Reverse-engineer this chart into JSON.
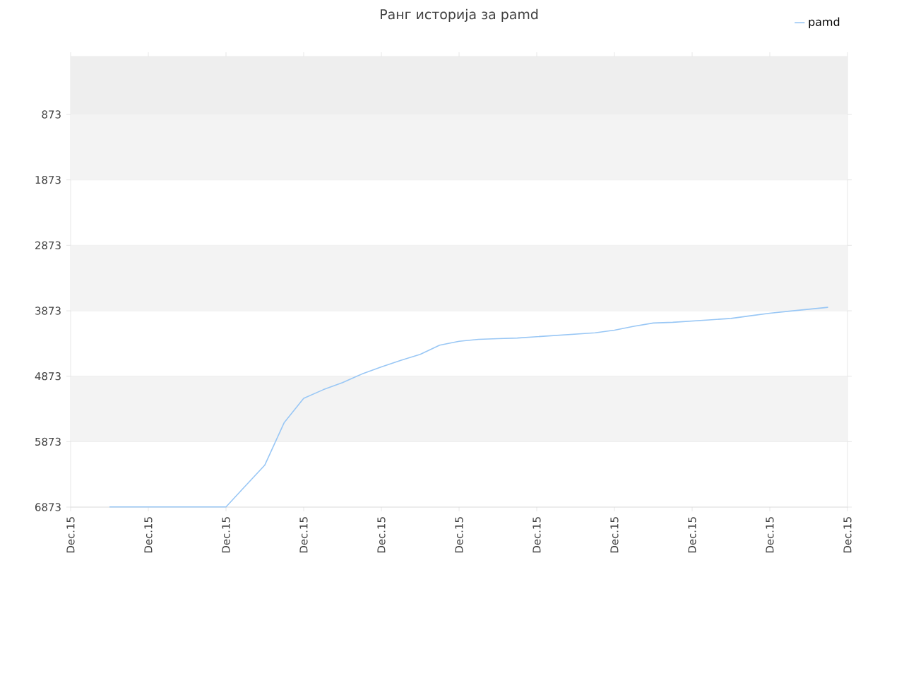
{
  "chart_data": {
    "type": "line",
    "title": "Ранг историја за pamd",
    "categories": [
      "Dec.15",
      null,
      null,
      null,
      "Dec.15",
      null,
      null,
      null,
      "Dec.15",
      null,
      null,
      null,
      "Dec.15",
      null,
      null,
      null,
      "Dec.15",
      null,
      null,
      null,
      "Dec.15",
      null,
      null,
      null,
      "Dec.15",
      null,
      null,
      null,
      "Dec.15",
      null,
      null,
      null,
      "Dec.15",
      null,
      null,
      null,
      "Dec.15",
      null,
      null,
      null,
      "Dec.15"
    ],
    "series": [
      {
        "name": "pamd",
        "color": "#99c7f5",
        "values": [
          null,
          null,
          6870,
          6870,
          6870,
          6870,
          6870,
          6870,
          6870,
          6550,
          6230,
          5580,
          5210,
          5080,
          4970,
          4840,
          4730,
          4630,
          4540,
          4400,
          4340,
          4310,
          4300,
          4290,
          4270,
          4250,
          4230,
          4210,
          4170,
          4110,
          4060,
          4050,
          4030,
          4010,
          3990,
          3950,
          3910,
          3880,
          3850,
          3820,
          null
        ]
      }
    ],
    "ylim": [
      6873,
      -12
    ],
    "yticks": [
      873,
      1873,
      2873,
      3873,
      4873,
      5873,
      6873
    ],
    "bands": [
      {
        "axis": "y",
        "from": -12,
        "to": 873,
        "color": "#eeeeee"
      },
      {
        "axis": "y",
        "from": 873,
        "to": 1873,
        "color": "#f3f3f3"
      },
      {
        "axis": "y",
        "from": 2873,
        "to": 3873,
        "color": "#f3f3f3"
      },
      {
        "axis": "y",
        "from": 4873,
        "to": 5873,
        "color": "#f3f3f3"
      }
    ],
    "grid": "y",
    "legend": "top right",
    "marker": "none",
    "line_style": "solid"
  }
}
